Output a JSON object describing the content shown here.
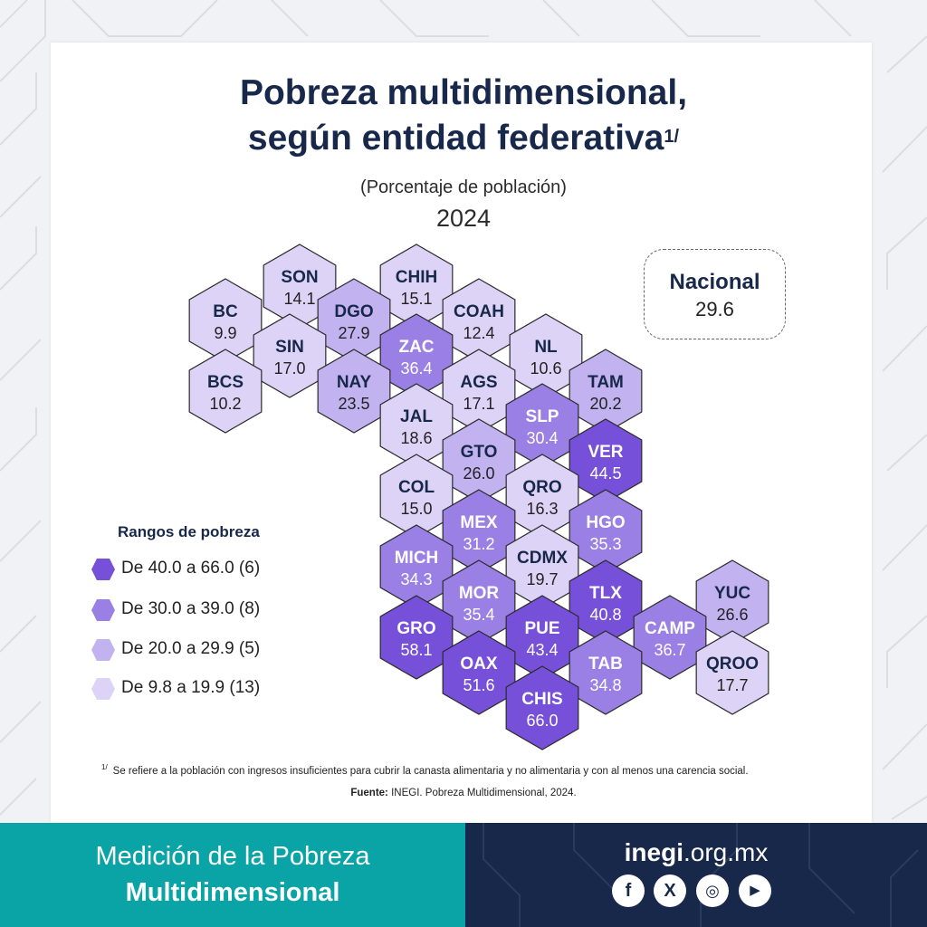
{
  "title_line1": "Pobreza multidimensional,",
  "title_line2": "según entidad federativa",
  "title_footnote_mark": "1/",
  "subtitle": "(Porcentaje de población)",
  "year": "2024",
  "national": {
    "label": "Nacional",
    "value": "29.6"
  },
  "legend": {
    "title": "Rangos de pobreza",
    "items": [
      {
        "label": "De 40.0 a 66.0 (6)",
        "color": "#7750d9"
      },
      {
        "label": "De 30.0 a 39.0 (8)",
        "color": "#9a80e5"
      },
      {
        "label": "De 20.0 a 29.9 (5)",
        "color": "#c2b3f0"
      },
      {
        "label": "De 9.8 a 19.9 (13)",
        "color": "#ddd3f7"
      }
    ]
  },
  "states": [
    {
      "code": "SON",
      "value": "14.1",
      "tier": 3
    },
    {
      "code": "CHIH",
      "value": "15.1",
      "tier": 3
    },
    {
      "code": "BC",
      "value": "9.9",
      "tier": 3
    },
    {
      "code": "DGO",
      "value": "27.9",
      "tier": 2
    },
    {
      "code": "COAH",
      "value": "12.4",
      "tier": 3
    },
    {
      "code": "SIN",
      "value": "17.0",
      "tier": 3
    },
    {
      "code": "ZAC",
      "value": "36.4",
      "tier": 1
    },
    {
      "code": "NL",
      "value": "10.6",
      "tier": 3
    },
    {
      "code": "BCS",
      "value": "10.2",
      "tier": 3
    },
    {
      "code": "NAY",
      "value": "23.5",
      "tier": 2
    },
    {
      "code": "AGS",
      "value": "17.1",
      "tier": 3
    },
    {
      "code": "TAM",
      "value": "20.2",
      "tier": 2
    },
    {
      "code": "JAL",
      "value": "18.6",
      "tier": 3
    },
    {
      "code": "SLP",
      "value": "30.4",
      "tier": 1
    },
    {
      "code": "GTO",
      "value": "26.0",
      "tier": 2
    },
    {
      "code": "VER",
      "value": "44.5",
      "tier": 0
    },
    {
      "code": "COL",
      "value": "15.0",
      "tier": 3
    },
    {
      "code": "QRO",
      "value": "16.3",
      "tier": 3
    },
    {
      "code": "MEX",
      "value": "31.2",
      "tier": 1
    },
    {
      "code": "HGO",
      "value": "35.3",
      "tier": 1
    },
    {
      "code": "MICH",
      "value": "34.3",
      "tier": 1
    },
    {
      "code": "CDMX",
      "value": "19.7",
      "tier": 3
    },
    {
      "code": "YUC",
      "value": "26.6",
      "tier": 2
    },
    {
      "code": "MOR",
      "value": "35.4",
      "tier": 1
    },
    {
      "code": "TLX",
      "value": "40.8",
      "tier": 0
    },
    {
      "code": "GRO",
      "value": "58.1",
      "tier": 0
    },
    {
      "code": "PUE",
      "value": "43.4",
      "tier": 0
    },
    {
      "code": "CAMP",
      "value": "36.7",
      "tier": 1
    },
    {
      "code": "OAX",
      "value": "51.6",
      "tier": 0
    },
    {
      "code": "TAB",
      "value": "34.8",
      "tier": 1
    },
    {
      "code": "QROO",
      "value": "17.7",
      "tier": 3
    },
    {
      "code": "CHIS",
      "value": "66.0",
      "tier": 0
    }
  ],
  "footnote_mark": "1/",
  "footnote": "Se refiere a la población con ingresos insuficientes para cubrir la canasta alimentaria y no alimentaria y con al menos una carencia social.",
  "source_label": "Fuente:",
  "source_text": "INEGI. Pobreza Multidimensional, 2024.",
  "footer": {
    "line1": "Medición de la Pobreza",
    "line2": "Multidimensional"
  },
  "website": {
    "domain": "inegi",
    "suffix": ".org.mx"
  },
  "social": {
    "facebook": "f",
    "x": "X",
    "instagram": "◎",
    "youtube": "▶"
  }
}
